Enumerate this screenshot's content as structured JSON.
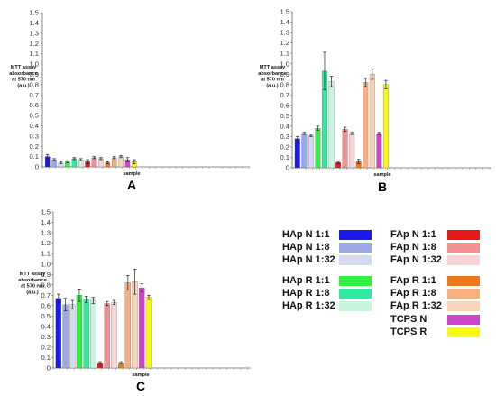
{
  "chart_data": [
    {
      "type": "bar",
      "panel_label": "A",
      "title": "",
      "ylabel_lines": [
        "MTT assay",
        "absorbance",
        "at 570 nm",
        "(a.u.)"
      ],
      "xlabel": "sample",
      "ylim": [
        0,
        1.5
      ],
      "yticks": [
        "0",
        "0.1",
        "0.2",
        "0.3",
        "0.4",
        "0.5",
        "0.6",
        "0.7",
        "0.8",
        "0.9",
        "1.0",
        "1.1",
        "1.2",
        "1.3",
        "1.4",
        "1.5"
      ],
      "grid": false,
      "categories": [
        "HAp N 1:1",
        "HAp N 1:8",
        "HAp N 1:32",
        "HAp R 1:1",
        "HAp R 1:8",
        "HAp R 1:32",
        "FAp N 1:1",
        "FAp N 1:8",
        "FAp N 1:32",
        "FAp R 1:1",
        "FAp R 1:8",
        "FAp R 1:32",
        "TCPS N",
        "TCPS R"
      ],
      "values": [
        0.1,
        0.07,
        0.04,
        0.05,
        0.08,
        0.07,
        0.05,
        0.09,
        0.08,
        0.04,
        0.09,
        0.1,
        0.07,
        0.05
      ],
      "errors": [
        0.02,
        0.01,
        0.01,
        0.01,
        0.01,
        0.01,
        0.02,
        0.01,
        0.01,
        0.01,
        0.01,
        0.01,
        0.02,
        0.02
      ]
    },
    {
      "type": "bar",
      "panel_label": "B",
      "title": "",
      "ylabel_lines": [
        "MTT assay",
        "absorbance",
        "at 570 nm",
        "(a.u.)"
      ],
      "xlabel": "sample",
      "ylim": [
        0,
        1.5
      ],
      "yticks": [
        "0",
        "0.1",
        "0.2",
        "0.3",
        "0.4",
        "0.5",
        "0.6",
        "0.7",
        "0.8",
        "0.9",
        "1.0",
        "1.1",
        "1.2",
        "1.3",
        "1.4",
        "1.5"
      ],
      "grid": false,
      "categories": [
        "HAp N 1:1",
        "HAp N 1:8",
        "HAp N 1:32",
        "HAp R 1:1",
        "HAp R 1:8",
        "HAp R 1:32",
        "FAp N 1:1",
        "FAp N 1:8",
        "FAp N 1:32",
        "FAp R 1:1",
        "FAp R 1:8",
        "FAp R 1:32",
        "TCPS N",
        "TCPS R"
      ],
      "values": [
        0.28,
        0.33,
        0.31,
        0.38,
        0.93,
        0.83,
        0.05,
        0.37,
        0.33,
        0.06,
        0.82,
        0.9,
        0.33,
        0.8
      ],
      "errors": [
        0.02,
        0.01,
        0.01,
        0.02,
        0.18,
        0.05,
        0.01,
        0.02,
        0.01,
        0.02,
        0.04,
        0.05,
        0.01,
        0.04
      ]
    },
    {
      "type": "bar",
      "panel_label": "C",
      "title": "",
      "ylabel_lines": [
        "MTT assay",
        "absorbance",
        "at 570 nm",
        "(a.u.)"
      ],
      "xlabel": "sample",
      "ylim": [
        0,
        1.5
      ],
      "yticks": [
        "0",
        "0.1",
        "0.2",
        "0.3",
        "0.4",
        "0.5",
        "0.6",
        "0.7",
        "0.8",
        "0.9",
        "1.0",
        "1.1",
        "1.2",
        "1.3",
        "1.4",
        "1.5"
      ],
      "grid": false,
      "categories": [
        "HAp N 1:1",
        "HAp N 1:8",
        "HAp N 1:32",
        "HAp R 1:1",
        "HAp R 1:8",
        "HAp R 1:32",
        "FAp N 1:1",
        "FAp N 1:8",
        "FAp N 1:32",
        "FAp R 1:1",
        "FAp R 1:8",
        "FAp R 1:32",
        "TCPS N",
        "TCPS R"
      ],
      "values": [
        0.67,
        0.61,
        0.61,
        0.7,
        0.66,
        0.65,
        0.05,
        0.62,
        0.63,
        0.05,
        0.82,
        0.83,
        0.77,
        0.68
      ],
      "errors": [
        0.04,
        0.06,
        0.04,
        0.06,
        0.03,
        0.03,
        0.01,
        0.02,
        0.02,
        0.01,
        0.07,
        0.12,
        0.04,
        0.02
      ]
    }
  ],
  "series_colors": [
    "#1a1aee",
    "#9aa8e8",
    "#d4d8f0",
    "#33ee44",
    "#33e8a0",
    "#c8f4dc",
    "#e81818",
    "#f09090",
    "#fad4d4",
    "#f07818",
    "#f4b080",
    "#f8d4b8",
    "#cc44cc",
    "#f8f818"
  ],
  "legend": {
    "left": [
      {
        "label": "HAp N 1:1",
        "color": "#1a1aee"
      },
      {
        "label": "HAp N 1:8",
        "color": "#9aa8e8"
      },
      {
        "label": "HAp N 1:32",
        "color": "#d4d8f0"
      },
      {
        "label": "HAp R 1:1",
        "color": "#33ee44"
      },
      {
        "label": "HAp R 1:8",
        "color": "#33e8a0"
      },
      {
        "label": "HAp R 1:32",
        "color": "#c8f4dc"
      }
    ],
    "right": [
      {
        "label": "FAp N 1:1",
        "color": "#e81818"
      },
      {
        "label": "FAp N 1:8",
        "color": "#f09090"
      },
      {
        "label": "FAp N 1:32",
        "color": "#fad4d4"
      },
      {
        "label": "FAp R 1:1",
        "color": "#f07818"
      },
      {
        "label": "FAp R 1:8",
        "color": "#f4b080"
      },
      {
        "label": "FAp R 1:32",
        "color": "#f8d4b8"
      },
      {
        "label": "TCPS N",
        "color": "#cc44cc"
      },
      {
        "label": "TCPS R",
        "color": "#f8f818"
      }
    ]
  }
}
